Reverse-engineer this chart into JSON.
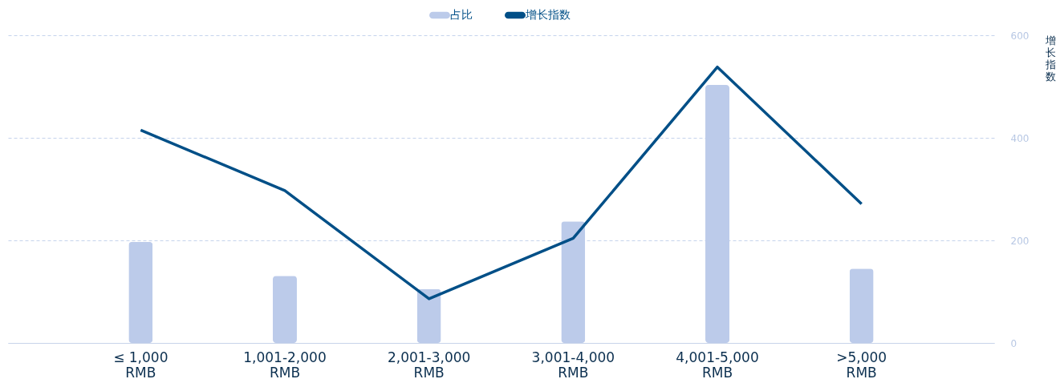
{
  "chart_data": {
    "type": "bar",
    "categories": [
      "≤ 1,000 RMB",
      "1,001-2,000 RMB",
      "2,001-3,000 RMB",
      "3,001-4,000 RMB",
      "4,001-5,000 RMB",
      ">5,000 RMB"
    ],
    "ylabel": "增长指数",
    "ylim": [
      0,
      600
    ],
    "yticks": [
      0,
      200,
      400,
      600
    ],
    "grid": "y",
    "legend": "top",
    "series": [
      {
        "name": "占比",
        "color": "#bccbea",
        "values": [
          197,
          131,
          105,
          237,
          503,
          145
        ]
      },
      {
        "name": "增长指数",
        "type": "line",
        "color": "#004f87",
        "values": [
          415,
          297,
          86,
          204,
          538,
          271
        ]
      }
    ]
  }
}
